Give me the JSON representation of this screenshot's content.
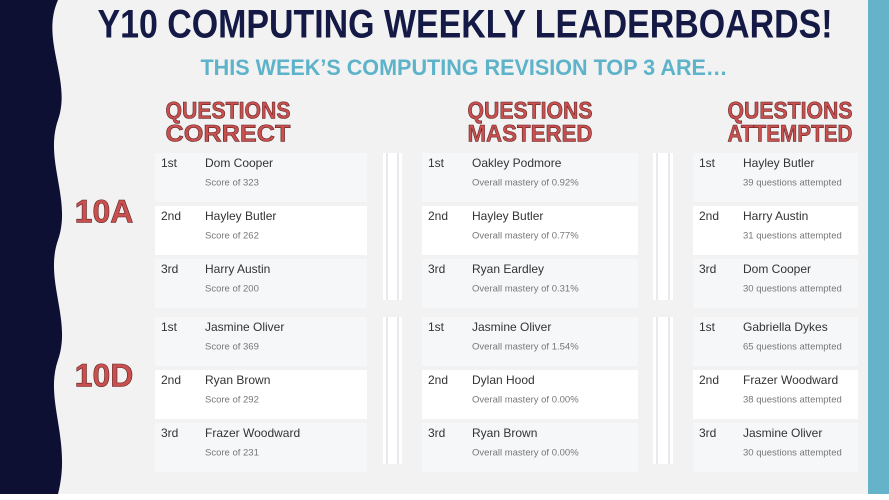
{
  "title": "Y10 COMPUTING WEEKLY LEADERBOARDS!",
  "subtitle": "THIS WEEK’S COMPUTING REVISION TOP 3 ARE…",
  "headers": [
    [
      "QUESTIONS",
      "CORRECT"
    ],
    [
      "QUESTIONS",
      "MASTERED"
    ],
    [
      "QUESTIONS",
      "ATTEMPTED"
    ]
  ],
  "groups": [
    {
      "label": "10A",
      "columns": [
        [
          {
            "rank": "1st",
            "name": "Dom Cooper",
            "detail": "Score of 323"
          },
          {
            "rank": "2nd",
            "name": "Hayley Butler",
            "detail": "Score of 262"
          },
          {
            "rank": "3rd",
            "name": "Harry Austin",
            "detail": "Score of 200"
          }
        ],
        [
          {
            "rank": "1st",
            "name": "Oakley Podmore",
            "detail": "Overall mastery of 0.92%"
          },
          {
            "rank": "2nd",
            "name": "Hayley Butler",
            "detail": "Overall mastery of 0.77%"
          },
          {
            "rank": "3rd",
            "name": "Ryan Eardley",
            "detail": "Overall mastery of 0.31%"
          }
        ],
        [
          {
            "rank": "1st",
            "name": "Hayley Butler",
            "detail": "39 questions attempted"
          },
          {
            "rank": "2nd",
            "name": "Harry Austin",
            "detail": "31 questions attempted"
          },
          {
            "rank": "3rd",
            "name": "Dom Cooper",
            "detail": "30 questions attempted"
          }
        ]
      ]
    },
    {
      "label": "10D",
      "columns": [
        [
          {
            "rank": "1st",
            "name": "Jasmine Oliver",
            "detail": "Score of 369"
          },
          {
            "rank": "2nd",
            "name": "Ryan Brown",
            "detail": "Score of 292"
          },
          {
            "rank": "3rd",
            "name": "Frazer Woodward",
            "detail": "Score of 231"
          }
        ],
        [
          {
            "rank": "1st",
            "name": "Jasmine Oliver",
            "detail": "Overall mastery of 1.54%"
          },
          {
            "rank": "2nd",
            "name": "Dylan Hood",
            "detail": "Overall mastery of 0.00%"
          },
          {
            "rank": "3rd",
            "name": "Ryan Brown",
            "detail": "Overall mastery of 0.00%"
          }
        ],
        [
          {
            "rank": "1st",
            "name": "Gabriella Dykes",
            "detail": "65 questions attempted"
          },
          {
            "rank": "2nd",
            "name": "Frazer Woodward",
            "detail": "38 questions attempted"
          },
          {
            "rank": "3rd",
            "name": "Jasmine Oliver",
            "detail": "30 questions attempted"
          }
        ]
      ]
    }
  ]
}
